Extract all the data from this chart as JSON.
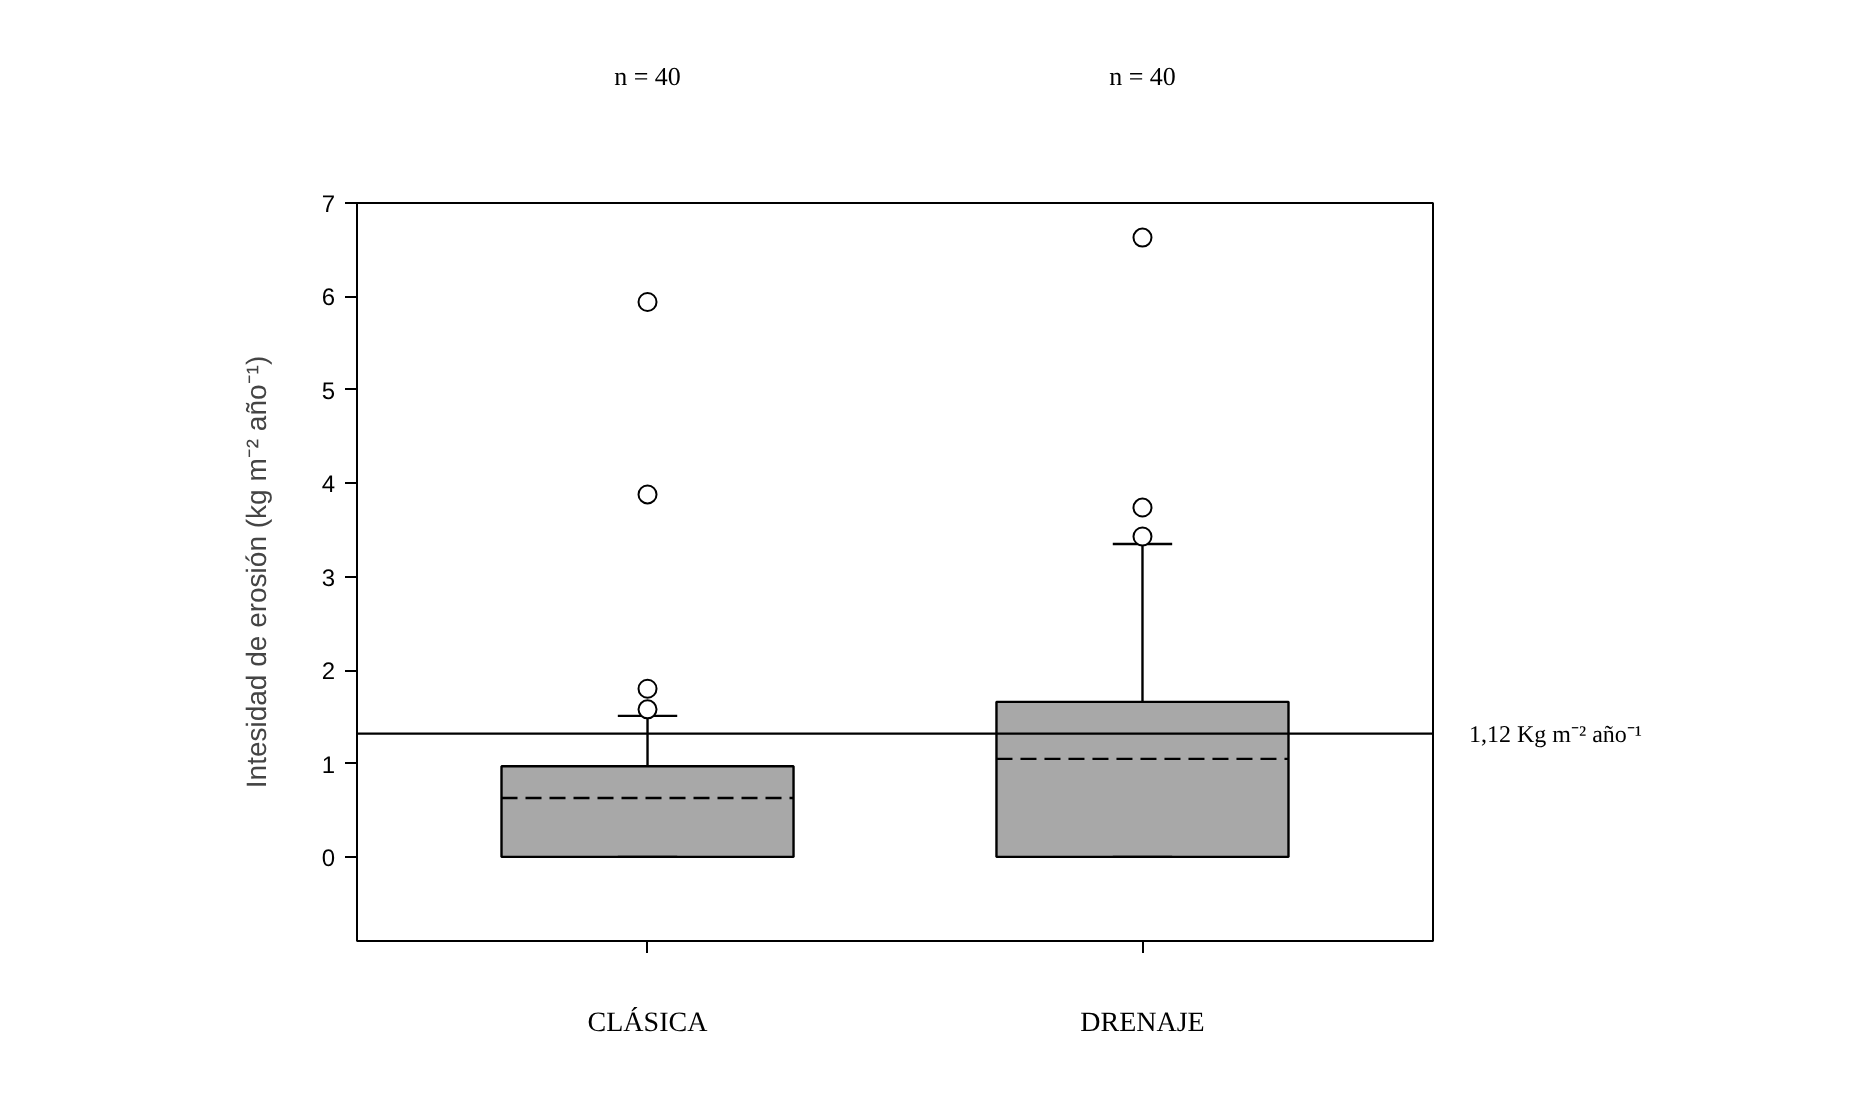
{
  "chart_data": {
    "type": "box",
    "categories": [
      "CLÁSICA",
      "DRENAJE"
    ],
    "ylabel": "Intesidad de erosión (kg m⁻² año⁻¹)",
    "color": "#a8a8a8",
    "boxes": [
      {
        "low": 0,
        "q1": 0,
        "median": 0.63,
        "q3": 0.97,
        "high": 1.51,
        "outliers": [
          1.58,
          1.8,
          3.88,
          5.94
        ]
      },
      {
        "low": 0,
        "q1": 0,
        "median": 1.05,
        "q3": 1.66,
        "high": 3.35,
        "outliers": [
          3.43,
          3.74,
          6.63
        ]
      }
    ],
    "ylim": [
      -0.9,
      7
    ],
    "yticks": [
      0,
      1,
      2,
      3,
      4,
      5,
      6,
      7
    ],
    "ref_lines": [
      {
        "axis": "y",
        "value": 1.32,
        "label": "1,12 Kg m⁻² año⁻¹",
        "color": "#000000"
      }
    ],
    "annotations": [
      "n = 40",
      "n = 40"
    ],
    "grid": false,
    "marker": "circle"
  }
}
